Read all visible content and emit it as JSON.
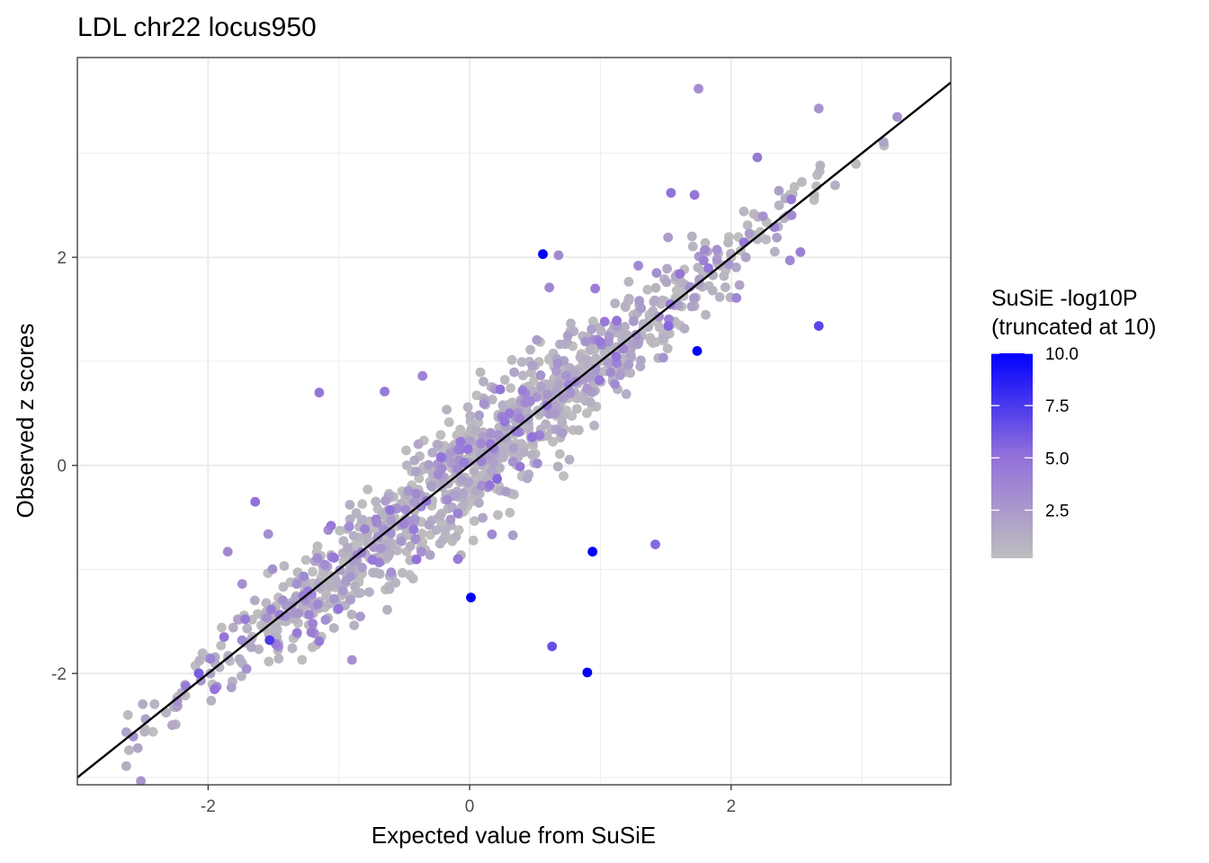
{
  "chart_data": {
    "type": "scatter",
    "title": "LDL chr22 locus950",
    "xlabel": "Expected value from SuSiE",
    "ylabel": "Observed z scores",
    "xlim": [
      -3.0,
      3.68
    ],
    "ylim": [
      -3.07,
      3.92
    ],
    "x_ticks": [
      -2,
      0,
      2
    ],
    "x_tick_labels": [
      "-2",
      "0",
      "2"
    ],
    "y_ticks": [
      -2,
      0,
      2
    ],
    "y_tick_labels": [
      "-2",
      "0",
      "2"
    ],
    "grid": true,
    "reference_line": {
      "slope": 1,
      "intercept": 0,
      "color": "#000000"
    },
    "color_scale": {
      "title_line1": "SuSiE -log10P",
      "title_line2": "(truncated at 10)",
      "min": 0.2,
      "max": 10.0,
      "low_color": "#bebebe",
      "mid_color": "#9370db",
      "high_color": "#0000ff",
      "breaks": [
        2.5,
        5.0,
        7.5,
        10.0
      ],
      "break_labels": [
        "2.5",
        "5.0",
        "7.5",
        "10.0"
      ]
    },
    "highlighted_points": [
      {
        "x": 1.75,
        "y": 3.62,
        "p": 3.2
      },
      {
        "x": 2.67,
        "y": 3.43,
        "p": 2.8
      },
      {
        "x": 3.27,
        "y": 3.35,
        "p": 3.0
      },
      {
        "x": 2.2,
        "y": 2.96,
        "p": 4.5
      },
      {
        "x": 1.54,
        "y": 2.62,
        "p": 5.0
      },
      {
        "x": 1.72,
        "y": 2.6,
        "p": 4.7
      },
      {
        "x": 0.56,
        "y": 2.03,
        "p": 10.0
      },
      {
        "x": 0.68,
        "y": 2.02,
        "p": 3.5
      },
      {
        "x": 2.67,
        "y": 1.34,
        "p": 7.0
      },
      {
        "x": 1.74,
        "y": 1.1,
        "p": 10.0
      },
      {
        "x": 2.04,
        "y": 1.61,
        "p": 3.8
      },
      {
        "x": 2.53,
        "y": 2.05,
        "p": 4.2
      },
      {
        "x": -1.15,
        "y": 0.7,
        "p": 4.8
      },
      {
        "x": -0.65,
        "y": 0.71,
        "p": 4.5
      },
      {
        "x": 0.94,
        "y": -0.83,
        "p": 10.0
      },
      {
        "x": 1.42,
        "y": -0.76,
        "p": 5.5
      },
      {
        "x": 0.01,
        "y": -1.27,
        "p": 10.0
      },
      {
        "x": 0.63,
        "y": -1.74,
        "p": 6.5
      },
      {
        "x": 0.9,
        "y": -1.99,
        "p": 10.0
      },
      {
        "x": -1.64,
        "y": -0.35,
        "p": 5.0
      },
      {
        "x": -1.53,
        "y": -1.68,
        "p": 7.5
      },
      {
        "x": -2.07,
        "y": -2.0,
        "p": 6.0
      },
      {
        "x": -1.85,
        "y": -0.83,
        "p": 3.5
      },
      {
        "x": -1.54,
        "y": -0.66,
        "p": 3.2
      },
      {
        "x": 0.61,
        "y": 1.71,
        "p": 3.6
      },
      {
        "x": -1.74,
        "y": -1.14,
        "p": 3.0
      },
      {
        "x": -0.36,
        "y": 0.86,
        "p": 4.0
      },
      {
        "x": -0.9,
        "y": -1.87,
        "p": 3.0
      },
      {
        "x": 1.29,
        "y": 1.92,
        "p": 3.5
      },
      {
        "x": 1.43,
        "y": 1.85,
        "p": 3.2
      },
      {
        "x": 0.96,
        "y": 1.7,
        "p": 4.2
      },
      {
        "x": 2.33,
        "y": 2.29,
        "p": 3.8
      },
      {
        "x": 1.52,
        "y": 1.34,
        "p": 5.5
      },
      {
        "x": 0.21,
        "y": -0.13,
        "p": 5.5
      },
      {
        "x": -0.22,
        "y": 0.08,
        "p": 5.0
      },
      {
        "x": -1.06,
        "y": -0.58,
        "p": 4.5
      },
      {
        "x": -0.09,
        "y": -0.9,
        "p": 4.5
      },
      {
        "x": 0.35,
        "y": 0.33,
        "p": 4.2
      },
      {
        "x": 0.09,
        "y": 0.04,
        "p": 4.0
      },
      {
        "x": -1.2,
        "y": -1.52,
        "p": 4.0
      },
      {
        "x": -1.15,
        "y": -1.69,
        "p": 4.5
      },
      {
        "x": 1.79,
        "y": 1.97,
        "p": 4.0
      },
      {
        "x": 2.45,
        "y": 1.97,
        "p": 3.5
      },
      {
        "x": -2.17,
        "y": -2.12,
        "p": 4.5
      },
      {
        "x": -0.71,
        "y": -0.55,
        "p": 3.5
      }
    ]
  }
}
